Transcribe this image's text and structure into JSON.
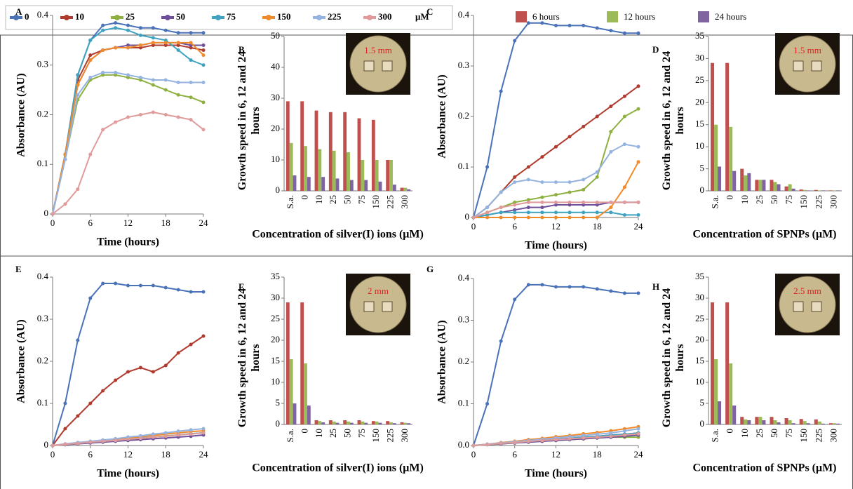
{
  "legend_unit": "μM",
  "chart_data": [
    {
      "type": "line",
      "label": "A",
      "y_label": "Absorbance (AU)",
      "x_label": "Time (hours)",
      "xlim": [
        0,
        24
      ],
      "xticks": [
        0,
        6,
        12,
        18,
        24
      ],
      "ylim": [
        0,
        0.4
      ],
      "yticks": [
        0,
        0.1,
        0.2,
        0.3,
        0.4
      ],
      "x": [
        0,
        2,
        4,
        6,
        8,
        10,
        12,
        14,
        16,
        18,
        20,
        22,
        24
      ],
      "series": [
        {
          "name": "0",
          "color": "#4a72b8",
          "values": [
            0,
            0.12,
            0.28,
            0.35,
            0.38,
            0.385,
            0.38,
            0.375,
            0.375,
            0.37,
            0.365,
            0.365,
            0.365
          ]
        },
        {
          "name": "10",
          "color": "#b03a2e",
          "values": [
            0,
            0.12,
            0.27,
            0.32,
            0.33,
            0.335,
            0.335,
            0.335,
            0.34,
            0.34,
            0.34,
            0.335,
            0.33
          ]
        },
        {
          "name": "25",
          "color": "#8db040",
          "values": [
            0,
            0.11,
            0.23,
            0.27,
            0.28,
            0.28,
            0.275,
            0.27,
            0.26,
            0.25,
            0.24,
            0.235,
            0.225
          ]
        },
        {
          "name": "50",
          "color": "#6f4f9a",
          "values": [
            0,
            0.12,
            0.26,
            0.31,
            0.33,
            0.335,
            0.34,
            0.34,
            0.345,
            0.345,
            0.345,
            0.34,
            0.34
          ]
        },
        {
          "name": "75",
          "color": "#3ea3c0",
          "values": [
            0,
            0.12,
            0.28,
            0.35,
            0.37,
            0.375,
            0.37,
            0.36,
            0.355,
            0.35,
            0.33,
            0.31,
            0.3
          ]
        },
        {
          "name": "150",
          "color": "#f08a2a",
          "values": [
            0,
            0.12,
            0.26,
            0.31,
            0.33,
            0.335,
            0.335,
            0.34,
            0.345,
            0.345,
            0.345,
            0.345,
            0.32
          ]
        },
        {
          "name": "225",
          "color": "#95b3e0",
          "values": [
            0,
            0.11,
            0.24,
            0.275,
            0.285,
            0.285,
            0.28,
            0.275,
            0.27,
            0.27,
            0.265,
            0.265,
            0.265
          ]
        },
        {
          "name": "300",
          "color": "#e09a9a",
          "values": [
            0,
            0.02,
            0.05,
            0.12,
            0.17,
            0.185,
            0.195,
            0.2,
            0.205,
            0.2,
            0.195,
            0.19,
            0.17
          ]
        }
      ]
    },
    {
      "type": "bar",
      "label": "B",
      "y_label": "Growth speed in 6, 12 and 24 hours",
      "x_label": "Concentration of silver(I) ions (μM)",
      "inset_label": "1.5 mm",
      "ylim": [
        0,
        50
      ],
      "yticks": [
        0,
        10,
        20,
        30,
        40,
        50
      ],
      "categories": [
        "S.a.",
        "0",
        "10",
        "25",
        "50",
        "75",
        "150",
        "225",
        "300"
      ],
      "series": [
        {
          "name": "6 hours",
          "color": "#c0504d",
          "values": [
            29,
            29,
            26,
            25.5,
            25.5,
            23.5,
            23,
            10,
            1
          ]
        },
        {
          "name": "12 hours",
          "color": "#9bbb59",
          "values": [
            15.5,
            14.5,
            13.5,
            13,
            12.5,
            10,
            10,
            10,
            1
          ]
        },
        {
          "name": "24 hours",
          "color": "#8064a2",
          "values": [
            5,
            4.5,
            4.5,
            4,
            3.5,
            3.5,
            3,
            2,
            0.5
          ]
        }
      ]
    },
    {
      "type": "line",
      "label": "C",
      "y_label": "Absorbance (AU)",
      "x_label": "Time (hours)",
      "xlim": [
        0,
        24
      ],
      "xticks": [
        0,
        6,
        12,
        18,
        24
      ],
      "ylim": [
        0,
        0.4
      ],
      "yticks": [
        0,
        0.1,
        0.2,
        0.3,
        0.4
      ],
      "x": [
        0,
        2,
        4,
        6,
        8,
        10,
        12,
        14,
        16,
        18,
        20,
        22,
        24
      ],
      "series": [
        {
          "color": "#4a72b8",
          "values": [
            0,
            0.1,
            0.25,
            0.35,
            0.385,
            0.385,
            0.38,
            0.38,
            0.38,
            0.375,
            0.37,
            0.365,
            0.365
          ]
        },
        {
          "color": "#b03a2e",
          "values": [
            0,
            0.02,
            0.05,
            0.08,
            0.1,
            0.12,
            0.14,
            0.16,
            0.18,
            0.2,
            0.22,
            0.24,
            0.26
          ]
        },
        {
          "color": "#8db040",
          "values": [
            0,
            0.01,
            0.02,
            0.03,
            0.035,
            0.04,
            0.045,
            0.05,
            0.055,
            0.08,
            0.17,
            0.2,
            0.215
          ]
        },
        {
          "color": "#6f4f9a",
          "values": [
            0,
            0.005,
            0.01,
            0.015,
            0.02,
            0.02,
            0.025,
            0.025,
            0.025,
            0.025,
            0.03,
            0.03,
            0.03
          ]
        },
        {
          "color": "#3ea3c0",
          "values": [
            0,
            0.005,
            0.01,
            0.01,
            0.01,
            0.01,
            0.01,
            0.01,
            0.01,
            0.01,
            0.01,
            0.005,
            0.005
          ]
        },
        {
          "color": "#f08a2a",
          "values": [
            0,
            0,
            0,
            0,
            0,
            0,
            0,
            0,
            0,
            0,
            0.02,
            0.06,
            0.11
          ]
        },
        {
          "color": "#95b3e0",
          "values": [
            0,
            0.02,
            0.05,
            0.07,
            0.075,
            0.07,
            0.07,
            0.07,
            0.075,
            0.09,
            0.13,
            0.145,
            0.14
          ]
        },
        {
          "color": "#e09a9a",
          "values": [
            0,
            0.01,
            0.02,
            0.025,
            0.03,
            0.03,
            0.03,
            0.03,
            0.03,
            0.03,
            0.03,
            0.03,
            0.03
          ]
        }
      ]
    },
    {
      "type": "bar",
      "label": "D",
      "y_label": "Growth speed in 6, 12 and 24 hours",
      "x_label": "Concentration of SPNPs (μM)",
      "inset_label": "1.5 mm",
      "ylim": [
        0,
        35
      ],
      "yticks": [
        0,
        5,
        10,
        15,
        20,
        25,
        30,
        35
      ],
      "categories": [
        "S.a.",
        "0",
        "10",
        "25",
        "50",
        "75",
        "150",
        "225",
        "300"
      ],
      "series": [
        {
          "color": "#c0504d",
          "values": [
            29,
            29,
            5,
            2.5,
            2.5,
            1,
            0.3,
            0.2,
            0.1
          ]
        },
        {
          "color": "#9bbb59",
          "values": [
            15,
            14.5,
            3.5,
            2.5,
            2,
            1.5,
            0.2,
            0.1,
            0.1
          ]
        },
        {
          "color": "#8064a2",
          "values": [
            5.5,
            4.5,
            4,
            2.5,
            1.5,
            0.5,
            0.1,
            0.1,
            0.1
          ]
        }
      ]
    },
    {
      "type": "line",
      "label": "E",
      "y_label": "Absorbance (AU)",
      "x_label": "Time (hours)",
      "xlim": [
        0,
        24
      ],
      "xticks": [
        0,
        6,
        12,
        18,
        24
      ],
      "ylim": [
        0,
        0.4
      ],
      "yticks": [
        0,
        0.1,
        0.2,
        0.3,
        0.4
      ],
      "x": [
        0,
        2,
        4,
        6,
        8,
        10,
        12,
        14,
        16,
        18,
        20,
        22,
        24
      ],
      "series": [
        {
          "color": "#4a72b8",
          "values": [
            0,
            0.1,
            0.25,
            0.35,
            0.385,
            0.385,
            0.38,
            0.38,
            0.38,
            0.375,
            0.37,
            0.365,
            0.365
          ]
        },
        {
          "color": "#b03a2e",
          "values": [
            0,
            0.04,
            0.07,
            0.1,
            0.13,
            0.155,
            0.175,
            0.185,
            0.175,
            0.19,
            0.22,
            0.24,
            0.26
          ]
        },
        {
          "color": "#8db040",
          "values": [
            0,
            0.003,
            0.005,
            0.008,
            0.01,
            0.013,
            0.015,
            0.018,
            0.02,
            0.023,
            0.025,
            0.028,
            0.03
          ]
        },
        {
          "color": "#6f4f9a",
          "values": [
            0,
            0.002,
            0.004,
            0.006,
            0.008,
            0.01,
            0.012,
            0.014,
            0.016,
            0.018,
            0.02,
            0.022,
            0.025
          ]
        },
        {
          "color": "#3ea3c0",
          "values": [
            0,
            0.003,
            0.005,
            0.008,
            0.01,
            0.013,
            0.015,
            0.018,
            0.02,
            0.022,
            0.025,
            0.028,
            0.03
          ]
        },
        {
          "color": "#f08a2a",
          "values": [
            0,
            0.003,
            0.006,
            0.009,
            0.012,
            0.015,
            0.018,
            0.021,
            0.024,
            0.027,
            0.03,
            0.033,
            0.035
          ]
        },
        {
          "color": "#95b3e0",
          "values": [
            0,
            0.004,
            0.007,
            0.01,
            0.013,
            0.016,
            0.02,
            0.023,
            0.027,
            0.03,
            0.034,
            0.037,
            0.04
          ]
        },
        {
          "color": "#e09a9a",
          "values": [
            0,
            0.003,
            0.005,
            0.008,
            0.01,
            0.012,
            0.015,
            0.017,
            0.02,
            0.022,
            0.025,
            0.027,
            0.03
          ]
        }
      ]
    },
    {
      "type": "bar",
      "label": "F",
      "y_label": "Growth speed in 6, 12 and 24 hours",
      "x_label": "Concentration of silver(I) ions (μM)",
      "inset_label": "2 mm",
      "ylim": [
        0,
        35
      ],
      "yticks": [
        0,
        5,
        10,
        15,
        20,
        25,
        30,
        35
      ],
      "categories": [
        "S.a.",
        "0",
        "10",
        "25",
        "50",
        "75",
        "150",
        "225",
        "300"
      ],
      "series": [
        {
          "color": "#c0504d",
          "values": [
            29,
            29,
            1,
            1,
            1,
            1,
            0.8,
            0.8,
            0.5
          ]
        },
        {
          "color": "#9bbb59",
          "values": [
            15.5,
            14.5,
            0.8,
            0.7,
            0.7,
            0.7,
            0.7,
            0.5,
            0.4
          ]
        },
        {
          "color": "#8064a2",
          "values": [
            5,
            4.5,
            0.5,
            0.4,
            0.4,
            0.4,
            0.4,
            0.3,
            0.3
          ]
        }
      ]
    },
    {
      "type": "line",
      "label": "G",
      "y_label": "Absorbance (AU)",
      "x_label": "Time (hours)",
      "xlim": [
        0,
        24
      ],
      "xticks": [
        0,
        6,
        12,
        18,
        24
      ],
      "ylim": [
        0,
        0.4
      ],
      "yticks": [
        {
          "value": 0,
          "label": "0.0"
        },
        0.1,
        0.2,
        0.3,
        0.4
      ],
      "x": [
        0,
        2,
        4,
        6,
        8,
        10,
        12,
        14,
        16,
        18,
        20,
        22,
        24
      ],
      "series": [
        {
          "color": "#4a72b8",
          "values": [
            0,
            0.1,
            0.25,
            0.35,
            0.385,
            0.385,
            0.38,
            0.38,
            0.38,
            0.375,
            0.37,
            0.365,
            0.365
          ]
        },
        {
          "color": "#b03a2e",
          "values": [
            0,
            0.003,
            0.005,
            0.008,
            0.01,
            0.012,
            0.015,
            0.017,
            0.02,
            0.022,
            0.025,
            0.027,
            0.03
          ]
        },
        {
          "color": "#8db040",
          "values": [
            0,
            0.002,
            0.004,
            0.006,
            0.008,
            0.01,
            0.012,
            0.014,
            0.016,
            0.018,
            0.02,
            0.02,
            0.02
          ]
        },
        {
          "color": "#6f4f9a",
          "values": [
            0,
            0.002,
            0.004,
            0.006,
            0.008,
            0.01,
            0.012,
            0.014,
            0.016,
            0.018,
            0.02,
            0.022,
            0.025
          ]
        },
        {
          "color": "#3ea3c0",
          "values": [
            0,
            0.003,
            0.005,
            0.007,
            0.01,
            0.012,
            0.015,
            0.017,
            0.02,
            0.022,
            0.025,
            0.027,
            0.03
          ]
        },
        {
          "color": "#f08a2a",
          "values": [
            0,
            0.003,
            0.007,
            0.01,
            0.014,
            0.017,
            0.021,
            0.024,
            0.028,
            0.031,
            0.035,
            0.04,
            0.045
          ]
        },
        {
          "color": "#95b3e0",
          "values": [
            0,
            0.003,
            0.006,
            0.009,
            0.012,
            0.015,
            0.018,
            0.021,
            0.024,
            0.027,
            0.03,
            0.035,
            0.04
          ]
        },
        {
          "color": "#e09a9a",
          "values": [
            0,
            0.002,
            0.005,
            0.007,
            0.01,
            0.012,
            0.014,
            0.016,
            0.018,
            0.02,
            0.022,
            0.025,
            0.028
          ]
        }
      ]
    },
    {
      "type": "bar",
      "label": "H",
      "y_label": "Growth speed in 6, 12 and 24 hours",
      "x_label": "Concentration of SPNPs (μM)",
      "inset_label": "2.5 mm",
      "ylim": [
        0,
        35
      ],
      "yticks": [
        0,
        5,
        10,
        15,
        20,
        25,
        30,
        35
      ],
      "categories": [
        "S.a.",
        "0",
        "10",
        "25",
        "50",
        "75",
        "150",
        "225",
        "300"
      ],
      "series": [
        {
          "color": "#c0504d",
          "values": [
            29,
            29,
            1.8,
            1.8,
            1.8,
            1.5,
            1.3,
            1.2,
            0.3
          ]
        },
        {
          "color": "#9bbb59",
          "values": [
            15.5,
            14.5,
            1.2,
            1.8,
            1,
            1,
            0.8,
            0.7,
            0.3
          ]
        },
        {
          "color": "#8064a2",
          "values": [
            5.5,
            4.5,
            1,
            1,
            0.5,
            0.3,
            0.3,
            0.2,
            0.2
          ]
        }
      ]
    }
  ]
}
